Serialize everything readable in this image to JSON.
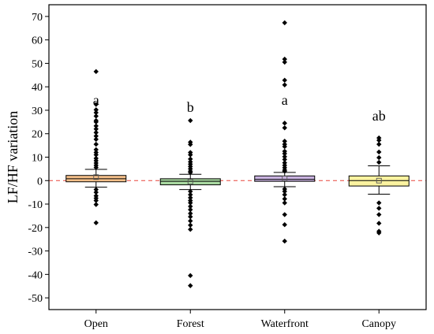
{
  "chart_data": {
    "type": "box",
    "ylabel": "LF/HF variation",
    "xlabel": "",
    "ylim": [
      -55,
      75
    ],
    "yticks": [
      -50,
      -40,
      -30,
      -20,
      -10,
      0,
      10,
      20,
      30,
      40,
      50,
      60,
      70
    ],
    "reference_line": {
      "y": 0,
      "color": "#e8443a",
      "style": "dashed"
    },
    "categories": [
      "Open",
      "Forest",
      "Waterfront",
      "Canopy"
    ],
    "groups": [
      {
        "name": "Open",
        "letter": "a",
        "fill": "#f5c08a",
        "q1": -0.5,
        "median": 0.8,
        "q3": 2.2,
        "mean": 1.5,
        "whisker_low": -2.8,
        "whisker_high": 4.8,
        "outliers": [
          46.5,
          32.5,
          30.2,
          29,
          27.5,
          25.6,
          25,
          23.3,
          22,
          20.5,
          19,
          17.6,
          15.5,
          13.2,
          12,
          11,
          9.5,
          8.5,
          7.5,
          6.5,
          5.6,
          -3.8,
          -5,
          -6.5,
          -7.5,
          -8.5,
          -10.2,
          -18
        ]
      },
      {
        "name": "Forest",
        "letter": "b",
        "fill": "#a8d8a0",
        "q1": -1.8,
        "median": -0.3,
        "q3": 0.8,
        "mean": -0.5,
        "whisker_low": -3.8,
        "whisker_high": 2.7,
        "outliers": [
          25.6,
          16.4,
          15.4,
          12,
          11,
          9.2,
          8,
          7,
          6,
          5,
          4,
          3.4,
          -4.6,
          -6,
          -7.3,
          -8.5,
          -9.5,
          -11,
          -12.4,
          -14,
          -15.4,
          -17.2,
          -19,
          -20.8,
          -40.5,
          -44.8
        ]
      },
      {
        "name": "Waterfront",
        "letter": "a",
        "fill": "#c9b3e0",
        "q1": -0.3,
        "median": 0.5,
        "q3": 2.0,
        "mean": 0.9,
        "whisker_low": -2.6,
        "whisker_high": 3.5,
        "outliers": [
          67.3,
          51.8,
          50.5,
          42.8,
          40.8,
          24.5,
          22.5,
          16.8,
          15.5,
          14.5,
          12.5,
          11.5,
          10.2,
          9,
          7.6,
          6.5,
          5.5,
          4.5,
          4,
          -3.6,
          -4.6,
          -6,
          -7.8,
          -9.5,
          -14.5,
          -18.8,
          -25.8
        ]
      },
      {
        "name": "Canopy",
        "letter": "ab",
        "fill": "#fbf3a0",
        "q1": -2.3,
        "median": 0.0,
        "q3": 2.0,
        "mean": 0.0,
        "whisker_low": -5.8,
        "whisker_high": 6.3,
        "outliers": [
          18.2,
          17.2,
          15.5,
          12.2,
          9.8,
          7.8,
          -9.5,
          -11.8,
          -14.5,
          -18.2,
          -21.6,
          -22.3
        ]
      }
    ]
  }
}
